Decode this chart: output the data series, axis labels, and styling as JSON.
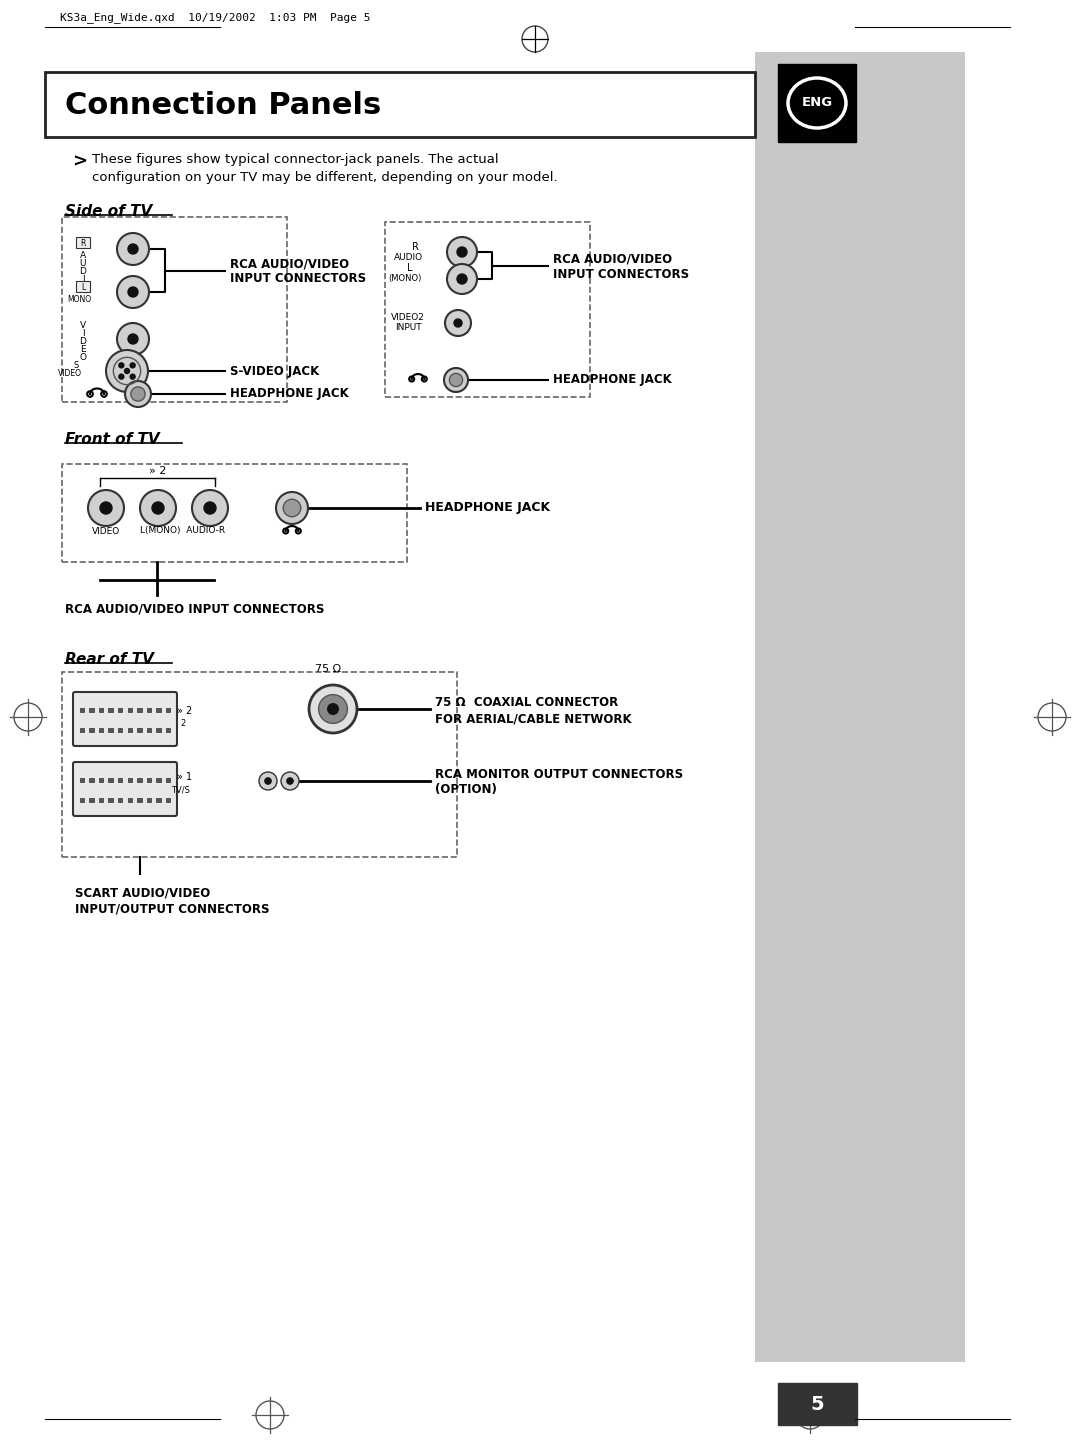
{
  "bg_color": "#ffffff",
  "gray_bar_color": "#c8c8c8",
  "title": "Connection Panels",
  "header_text": "KS3a_Eng_Wide.qxd  10/19/2002  1:03 PM  Page 5",
  "intro_line1": "These figures show typical connector-jack panels. The actual",
  "intro_line2": "configuration on your TV may be different, depending on your model.",
  "section1": "Side of TV",
  "section2": "Front of TV",
  "section3": "Rear of TV",
  "label_rca_side_l1": "RCA AUDIO/VIDEO",
  "label_rca_side_l2": "INPUT CONNECTORS",
  "label_svideo": "S-VIDEO JACK",
  "label_headphone": "HEADPHONE JACK",
  "label_rca_front": "RCA AUDIO/VIDEO INPUT CONNECTORS",
  "label_headphone_front": "HEADPHONE JACK",
  "label_75ohm_l1": "75 Ω  COAXIAL CONNECTOR",
  "label_75ohm_l2": "FOR AERIAL/CABLE NETWORK",
  "label_rca_monitor_l1": "RCA MONITOR OUTPUT CONNECTORS",
  "label_rca_monitor_l2": "(OPTION)",
  "label_scart_l1": "SCART AUDIO/VIDEO",
  "label_scart_l2": "INPUT/OUTPUT CONNECTORS",
  "page_num": "5"
}
